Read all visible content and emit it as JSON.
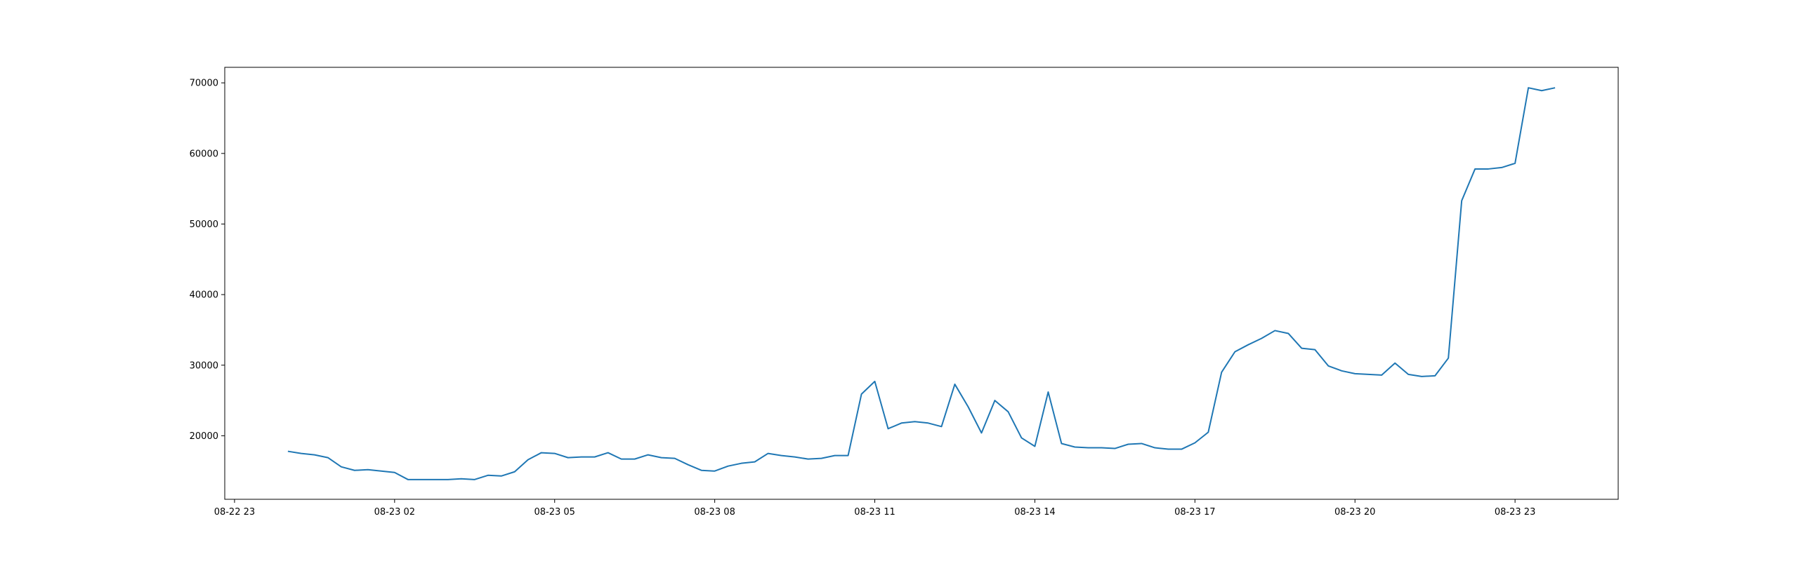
{
  "chart_data": {
    "type": "line",
    "x": [
      "08-23 00:00",
      "08-23 00:15",
      "08-23 00:30",
      "08-23 00:45",
      "08-23 01:00",
      "08-23 01:15",
      "08-23 01:30",
      "08-23 01:45",
      "08-23 02:00",
      "08-23 02:15",
      "08-23 02:30",
      "08-23 02:45",
      "08-23 03:00",
      "08-23 03:15",
      "08-23 03:30",
      "08-23 03:45",
      "08-23 04:00",
      "08-23 04:15",
      "08-23 04:30",
      "08-23 04:45",
      "08-23 05:00",
      "08-23 05:15",
      "08-23 05:30",
      "08-23 05:45",
      "08-23 06:00",
      "08-23 06:15",
      "08-23 06:30",
      "08-23 06:45",
      "08-23 07:00",
      "08-23 07:15",
      "08-23 07:30",
      "08-23 07:45",
      "08-23 08:00",
      "08-23 08:15",
      "08-23 08:30",
      "08-23 08:45",
      "08-23 09:00",
      "08-23 09:15",
      "08-23 09:30",
      "08-23 09:45",
      "08-23 10:00",
      "08-23 10:15",
      "08-23 10:30",
      "08-23 10:45",
      "08-23 11:00",
      "08-23 11:15",
      "08-23 11:30",
      "08-23 11:45",
      "08-23 12:00",
      "08-23 12:15",
      "08-23 12:30",
      "08-23 12:45",
      "08-23 13:00",
      "08-23 13:15",
      "08-23 13:30",
      "08-23 13:45",
      "08-23 14:00",
      "08-23 14:15",
      "08-23 14:30",
      "08-23 14:45",
      "08-23 15:00",
      "08-23 15:15",
      "08-23 15:30",
      "08-23 15:45",
      "08-23 16:00",
      "08-23 16:15",
      "08-23 16:30",
      "08-23 16:45",
      "08-23 17:00",
      "08-23 17:15",
      "08-23 17:30",
      "08-23 17:45",
      "08-23 18:00",
      "08-23 18:15",
      "08-23 18:30",
      "08-23 18:45",
      "08-23 19:00",
      "08-23 19:15",
      "08-23 19:30",
      "08-23 19:45",
      "08-23 20:00",
      "08-23 20:15",
      "08-23 20:30",
      "08-23 20:45",
      "08-23 21:00",
      "08-23 21:15",
      "08-23 21:30",
      "08-23 21:45",
      "08-23 22:00",
      "08-23 22:15",
      "08-23 22:30",
      "08-23 22:45",
      "08-23 23:00",
      "08-23 23:15",
      "08-23 23:30",
      "08-23 23:45"
    ],
    "series": [
      {
        "color": "#1f77b4",
        "values": [
          17800,
          17500,
          17300,
          16900,
          15600,
          15100,
          15200,
          15000,
          14800,
          13800,
          13800,
          13800,
          13800,
          13900,
          13800,
          14400,
          14300,
          14900,
          16600,
          17600,
          17500,
          16900,
          17000,
          17000,
          17600,
          16700,
          16700,
          17300,
          16900,
          16800,
          15900,
          15100,
          15000,
          15700,
          16100,
          16300,
          17500,
          17200,
          17000,
          16700,
          16800,
          17200,
          17200,
          25900,
          27700,
          21000,
          21800,
          22000,
          21800,
          21300,
          27300,
          24100,
          20400,
          25000,
          23400,
          19700,
          18500,
          26200,
          18900,
          18400,
          18300,
          18300,
          18200,
          18800,
          18900,
          18300,
          18100,
          18100,
          19000,
          20500,
          29000,
          31900,
          32900,
          33800,
          34900,
          34500,
          32400,
          32200,
          29900,
          29200,
          28800,
          28700,
          28600,
          30300,
          28700,
          28400,
          28500,
          31000,
          53300,
          57800,
          57800,
          58000,
          58600,
          69300,
          68900,
          69300
        ]
      }
    ],
    "xlim": [
      "08-22 22:49",
      "08-24 00:56"
    ],
    "xticks": [
      "08-22 23",
      "08-23 02",
      "08-23 05",
      "08-23 08",
      "08-23 11",
      "08-23 14",
      "08-23 17",
      "08-23 20",
      "08-23 23"
    ],
    "ylim": [
      11000,
      72200
    ],
    "yticks": [
      20000,
      30000,
      40000,
      50000,
      60000,
      70000
    ]
  }
}
